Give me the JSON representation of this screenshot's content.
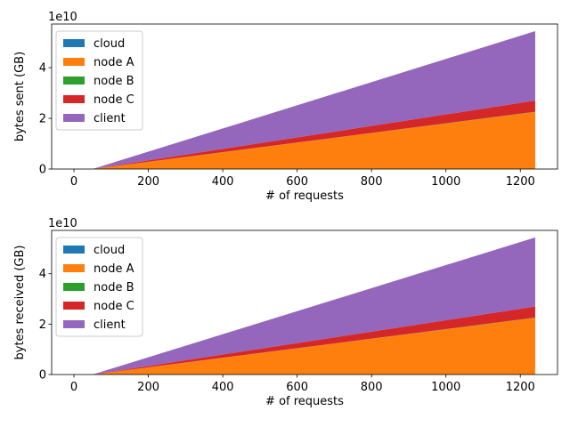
{
  "colors": {
    "cloud": "#1f77b4",
    "node A": "#ff7f0e",
    "node B": "#2ca02c",
    "node C": "#d62728",
    "client": "#9467bd"
  },
  "chart_data": [
    {
      "type": "area",
      "stacked": true,
      "xlabel": "# of requests",
      "ylabel": "bytes sent (GB)",
      "y_offset_text": "1e10",
      "xlim": [
        -60,
        1300
      ],
      "ylim": [
        0,
        57200000000.0
      ],
      "xticks": [
        0,
        200,
        400,
        600,
        800,
        1000,
        1200
      ],
      "yticks": [
        0,
        20000000000.0,
        40000000000.0
      ],
      "ytick_labels": [
        "0",
        "2",
        "4"
      ],
      "grid": false,
      "legend_position": "upper-left",
      "x": [
        50,
        1240
      ],
      "series": [
        {
          "name": "cloud",
          "values": [
            0,
            0
          ]
        },
        {
          "name": "node A",
          "values": [
            0,
            22500000000.0
          ]
        },
        {
          "name": "node B",
          "values": [
            0,
            100000000.0
          ]
        },
        {
          "name": "node C",
          "values": [
            0,
            4400000000.0
          ]
        },
        {
          "name": "client",
          "values": [
            0,
            27400000000.0
          ]
        }
      ]
    },
    {
      "type": "area",
      "stacked": true,
      "xlabel": "# of requests",
      "ylabel": "bytes received (GB)",
      "y_offset_text": "1e10",
      "xlim": [
        -60,
        1300
      ],
      "ylim": [
        0,
        57200000000.0
      ],
      "xticks": [
        0,
        200,
        400,
        600,
        800,
        1000,
        1200
      ],
      "yticks": [
        0,
        20000000000.0,
        40000000000.0
      ],
      "ytick_labels": [
        "0",
        "2",
        "4"
      ],
      "grid": false,
      "legend_position": "upper-left",
      "x": [
        50,
        1240
      ],
      "series": [
        {
          "name": "cloud",
          "values": [
            0,
            0
          ]
        },
        {
          "name": "node A",
          "values": [
            0,
            22500000000.0
          ]
        },
        {
          "name": "node B",
          "values": [
            0,
            100000000.0
          ]
        },
        {
          "name": "node C",
          "values": [
            0,
            4400000000.0
          ]
        },
        {
          "name": "client",
          "values": [
            0,
            27400000000.0
          ]
        }
      ]
    }
  ]
}
